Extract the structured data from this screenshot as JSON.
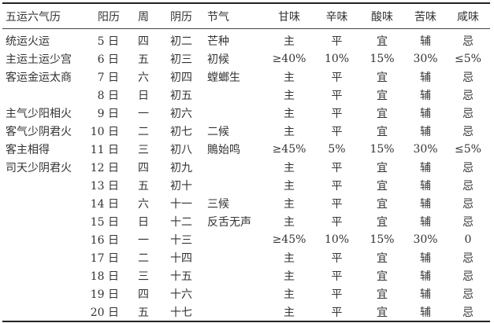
{
  "headers": [
    "五运六气历",
    "阳历",
    "周",
    "阴历",
    "节气",
    "甘味",
    "辛味",
    "酸味",
    "苦味",
    "咸味"
  ],
  "rows": [
    [
      "统运火运",
      "5 日",
      "四",
      "初二",
      "芒种",
      "主",
      "平",
      "宜",
      "辅",
      "忌"
    ],
    [
      "主运土运少宫",
      "6 日",
      "五",
      "初三",
      "初候",
      "≥40%",
      "10%",
      "15%",
      "30%",
      "≤5%"
    ],
    [
      "客运金运太商",
      "7 日",
      "六",
      "初四",
      "螳螂生",
      "主",
      "平",
      "宜",
      "辅",
      "忌"
    ],
    [
      "",
      "8 日",
      "日",
      "初五",
      "",
      "主",
      "平",
      "宜",
      "辅",
      "忌"
    ],
    [
      "主气少阳相火",
      "9 日",
      "一",
      "初六",
      "",
      "主",
      "平",
      "宜",
      "辅",
      "忌"
    ],
    [
      "客气少阴君火",
      "10 日",
      "二",
      "初七",
      "二候",
      "主",
      "平",
      "宜",
      "辅",
      "忌"
    ],
    [
      "客主相得",
      "11 日",
      "三",
      "初八",
      "鵙始鸣",
      "≥45%",
      "5%",
      "15%",
      "30%",
      "≤5%"
    ],
    [
      "司天少阴君火",
      "12 日",
      "四",
      "初九",
      "",
      "主",
      "平",
      "宜",
      "辅",
      "忌"
    ],
    [
      "",
      "13 日",
      "五",
      "初十",
      "",
      "主",
      "平",
      "宜",
      "辅",
      "忌"
    ],
    [
      "",
      "14 日",
      "六",
      "十一",
      "三候",
      "主",
      "平",
      "宜",
      "辅",
      "忌"
    ],
    [
      "",
      "15 日",
      "日",
      "十二",
      "反舌无声",
      "主",
      "平",
      "宜",
      "辅",
      "忌"
    ],
    [
      "",
      "16 日",
      "一",
      "十三",
      "",
      "≥45%",
      "10%",
      "15%",
      "30%",
      "0"
    ],
    [
      "",
      "17 日",
      "二",
      "十四",
      "",
      "主",
      "平",
      "宜",
      "辅",
      "忌"
    ],
    [
      "",
      "18 日",
      "三",
      "十五",
      "",
      "主",
      "平",
      "宜",
      "辅",
      "忌"
    ],
    [
      "",
      "19 日",
      "四",
      "十六",
      "",
      "主",
      "平",
      "宜",
      "辅",
      "忌"
    ],
    [
      "",
      "20 日",
      "五",
      "十七",
      "",
      "主",
      "平",
      "宜",
      "辅",
      "忌"
    ]
  ]
}
